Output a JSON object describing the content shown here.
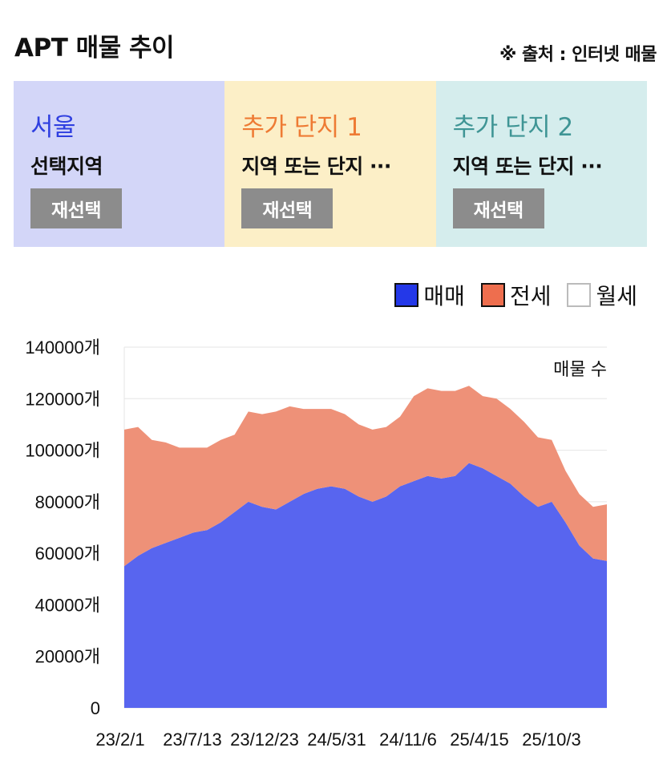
{
  "header": {
    "title": "APT 매물 추이",
    "source": "※ 출처 : 인터넷 매물"
  },
  "panels": [
    {
      "name": "서울",
      "subtitle": "선택지역",
      "button": "재선택",
      "bg": "#d3d6f8",
      "color": "#2f3fe0"
    },
    {
      "name": "추가 단지 1",
      "subtitle": "지역 또는 단지 ···",
      "button": "재선택",
      "bg": "#fcefc7",
      "color": "#ee7b34"
    },
    {
      "name": "추가 단지 2",
      "subtitle": "지역 또는 단지 ···",
      "button": "재선택",
      "bg": "#d5eded",
      "color": "#3f9595"
    }
  ],
  "legend": [
    {
      "label": "매매",
      "color": "#2438e8"
    },
    {
      "label": "전세",
      "color": "#ee6e4e"
    },
    {
      "label": "월세",
      "color": "#ffffff"
    }
  ],
  "chart_data": {
    "type": "area",
    "stacked": true,
    "annotation": "매물 수",
    "ylim": [
      0,
      140000
    ],
    "y_ticks": [
      "0",
      "20000개",
      "40000개",
      "60000개",
      "80000개",
      "100000개",
      "120000개",
      "140000개"
    ],
    "x_ticks": [
      "23/2/1",
      "23/7/13",
      "23/12/23",
      "24/5/31",
      "24/11/6",
      "25/4/15",
      "25/10/3"
    ],
    "x": [
      "23/2/1",
      "23/3/1",
      "23/4/1",
      "23/5/1",
      "23/6/1",
      "23/7/1",
      "23/8/1",
      "23/9/1",
      "23/10/1",
      "23/11/1",
      "23/12/1",
      "24/1/1",
      "24/2/1",
      "24/3/1",
      "24/4/1",
      "24/5/1",
      "24/6/1",
      "24/7/1",
      "24/8/1",
      "24/9/1",
      "24/10/1",
      "24/11/1",
      "24/12/1",
      "25/1/1",
      "25/2/1",
      "25/3/1",
      "25/4/1",
      "25/5/1",
      "25/6/1",
      "25/7/1",
      "25/8/1",
      "25/9/1",
      "25/10/1",
      "25/11/1",
      "25/12/1",
      "26/1/1"
    ],
    "series": [
      {
        "name": "매매",
        "color": "#5865ef",
        "values": [
          55000,
          59000,
          62000,
          64000,
          66000,
          68000,
          69000,
          72000,
          76000,
          80000,
          78000,
          77000,
          80000,
          83000,
          85000,
          86000,
          85000,
          82000,
          80000,
          82000,
          86000,
          88000,
          90000,
          89000,
          90000,
          95000,
          93000,
          90000,
          87000,
          82000,
          78000,
          80000,
          72000,
          63000,
          58000,
          57000
        ]
      },
      {
        "name": "전세",
        "color": "#ee9178",
        "values": [
          53000,
          50000,
          42000,
          39000,
          35000,
          33000,
          32000,
          32000,
          30000,
          35000,
          36000,
          38000,
          37000,
          33000,
          31000,
          30000,
          29000,
          28000,
          28000,
          27000,
          27000,
          33000,
          34000,
          34000,
          33000,
          30000,
          28000,
          30000,
          29000,
          29000,
          27000,
          24000,
          20000,
          20000,
          20000,
          22000
        ]
      },
      {
        "name": "월세",
        "color": "#ffffff",
        "values": [
          0,
          0,
          0,
          0,
          0,
          0,
          0,
          0,
          0,
          0,
          0,
          0,
          0,
          0,
          0,
          0,
          0,
          0,
          0,
          0,
          0,
          0,
          0,
          0,
          0,
          0,
          0,
          0,
          0,
          0,
          0,
          0,
          0,
          0,
          0,
          0
        ]
      }
    ]
  }
}
